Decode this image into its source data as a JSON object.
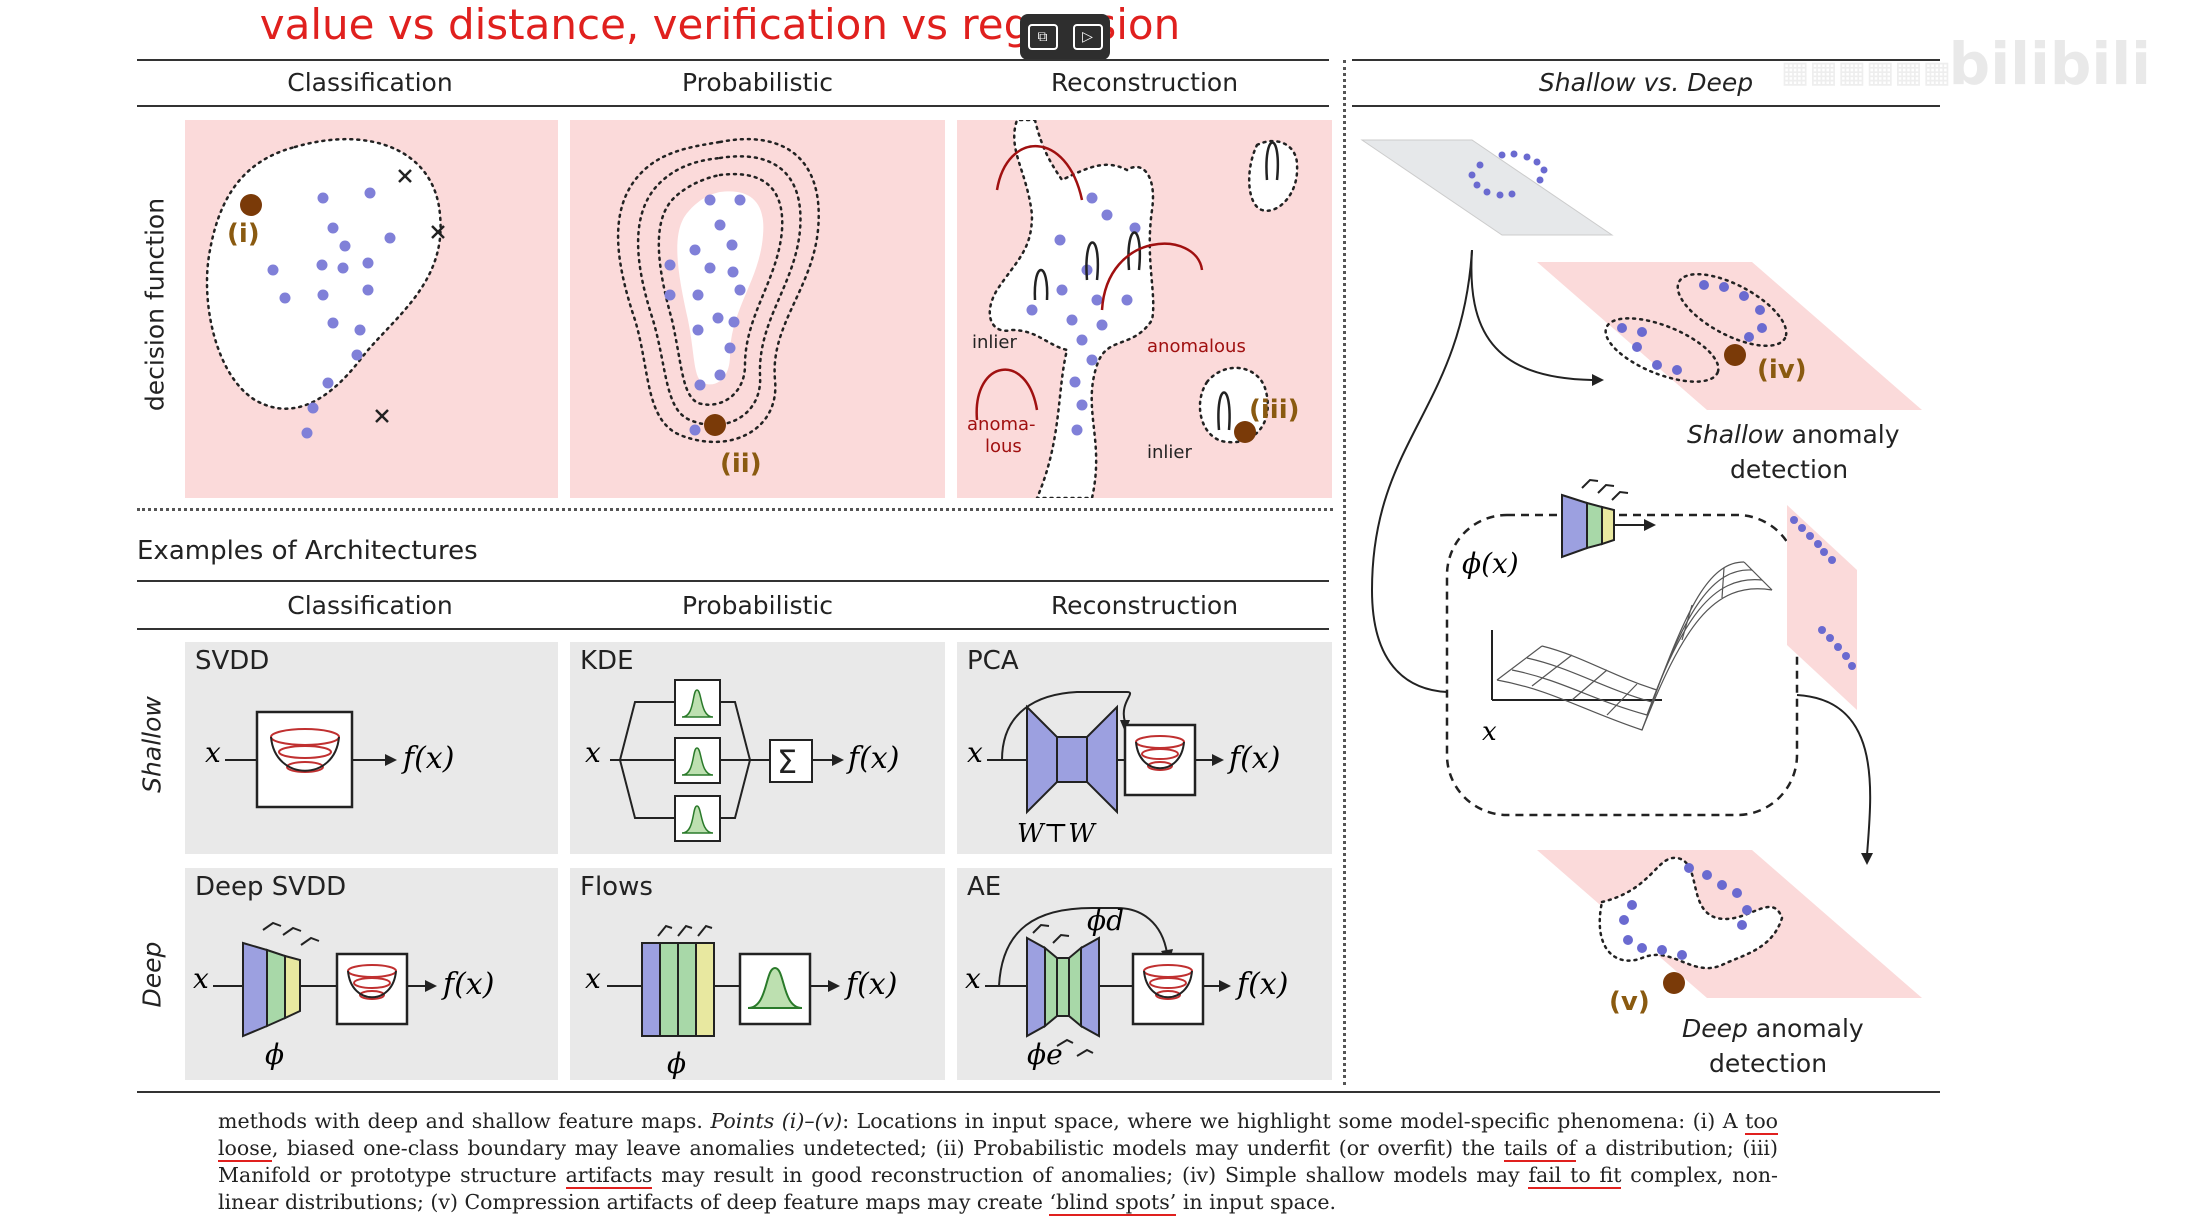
{
  "slide_title": "value vs distance, verification vs regression",
  "logo_text": "bilibili",
  "figure": {
    "top_columns": [
      "Classification",
      "Probabilistic",
      "Reconstruction"
    ],
    "right_column": "Shallow vs. Deep",
    "decision_function_label": "decision function",
    "point_labels": {
      "i": "(i)",
      "ii": "(ii)",
      "iii": "(iii)",
      "iv": "(iv)",
      "v": "(v)"
    },
    "recon_labels": {
      "inlier1": "inlier",
      "inlier2": "inlier",
      "anomalous": "anomalous",
      "anoma": "anoma-",
      "lous": "lous"
    },
    "examples_title": "Examples of Architectures",
    "arch_columns": [
      "Classification",
      "Probabilistic",
      "Reconstruction"
    ],
    "arch_rows": [
      "Shallow",
      "Deep"
    ],
    "methods": {
      "shallow": [
        "SVDD",
        "KDE",
        "PCA"
      ],
      "deep": [
        "Deep SVDD",
        "Flows",
        "AE"
      ]
    },
    "math": {
      "x": "x",
      "fx": "f(x)",
      "phi": "ϕ",
      "phi_x": "ϕ(x)",
      "phi_d": "ϕd",
      "phi_e": "ϕe",
      "WtW": "W⊤W",
      "sum": "Σ"
    },
    "shallow_ad": [
      "Shallow",
      "anomaly",
      "detection"
    ],
    "deep_ad": [
      "Deep",
      "anomaly",
      "detection"
    ]
  },
  "caption": {
    "p1": "methods with deep and shallow feature maps.",
    "p2": "Points (i)–(v)",
    "p3": ": Locations in input space, where we highlight some model-specific phenomena: (i) A",
    "h1": "too loose",
    "p4": ", biased one-class boundary may leave anomalies undetected; (ii) Probabilistic models may underfit (or overfit) the",
    "h2": "tails of",
    "p5": "a distribution; (iii) Manifold or prototype structure",
    "h3": "artifacts",
    "p6": "may result in good reconstruction of anomalies; (iv) Simple shallow models may",
    "h4": "fail to fit",
    "p7": "complex, non-linear distributions; (v) Compression artifacts of deep feature maps may create",
    "h5": "‘blind spots’",
    "p8": "in input space."
  },
  "colors": {
    "title_red": "#e0201e",
    "anomaly_pink": "#fbdada",
    "cell_gray": "#e9e9e9",
    "point_blue": "#8080d8",
    "anomaly_brown": "#7a3a08",
    "label_brown": "#8a5a10"
  }
}
